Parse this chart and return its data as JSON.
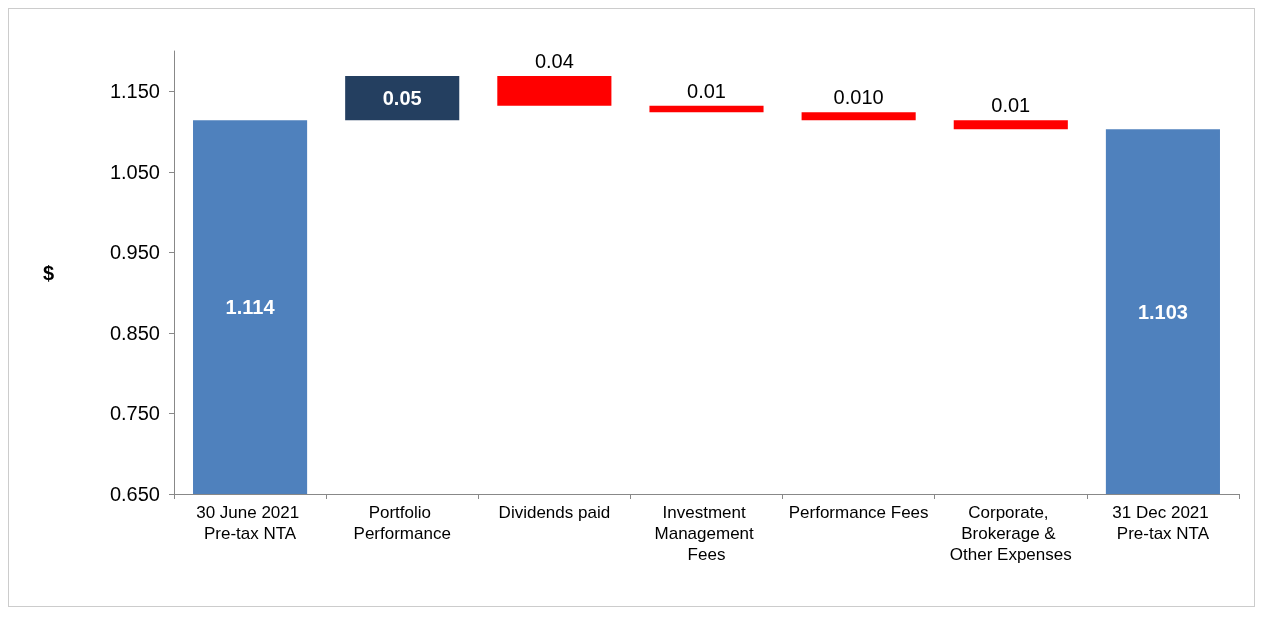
{
  "chart_data": {
    "type": "bar",
    "ylabel": "$",
    "categories": [
      "30 June 2021 Pre-tax NTA",
      "Portfolio Performance",
      "Dividends paid",
      "Investment Management Fees",
      "Performance Fees",
      "Corporate, Brokerage & Other Expenses",
      "31 Dec 2021 Pre-tax NTA"
    ],
    "values": [
      1.114,
      0.055,
      -0.037,
      -0.008,
      -0.01,
      -0.011,
      1.103
    ],
    "base": [
      null,
      1.114,
      1.169,
      1.132,
      1.124,
      1.114,
      null
    ],
    "colors": [
      "#4f81bd",
      "#243f60",
      "#ff0000",
      "#ff0000",
      "#ff0000",
      "#ff0000",
      "#4f81bd"
    ],
    "value_labels": [
      "1.114",
      "0.05",
      "0.04",
      "0.01",
      "0.010",
      "0.01",
      "1.103"
    ],
    "ylim": [
      0.65,
      1.2
    ],
    "yticks": [
      {
        "value": 0.65,
        "label": "0.650"
      },
      {
        "value": 0.75,
        "label": "0.750"
      },
      {
        "value": 0.85,
        "label": "0.850"
      },
      {
        "value": 0.95,
        "label": "0.950"
      },
      {
        "value": 1.05,
        "label": "1.050"
      },
      {
        "value": 1.15,
        "label": "1.150"
      }
    ],
    "grid": false
  }
}
